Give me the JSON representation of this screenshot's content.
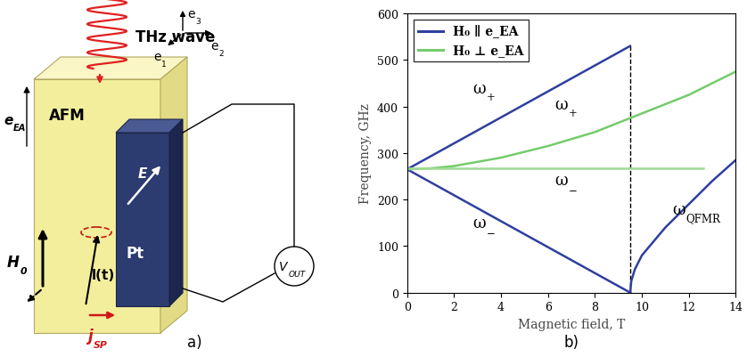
{
  "diagram": {
    "caption": "a)",
    "wave_label": "THz wave",
    "basis": [
      {
        "base": "e",
        "sub": "1"
      },
      {
        "base": "e",
        "sub": "2"
      },
      {
        "base": "e",
        "sub": "3"
      }
    ],
    "afm": "AFM",
    "easy_axis": {
      "base": "e",
      "sub": "EA"
    },
    "field": {
      "base": "H",
      "sub": "0"
    },
    "order_parameter": "l(t)",
    "pt": "Pt",
    "electric_field": "E",
    "voltage": {
      "base": "V",
      "sub": "OUT"
    },
    "spin_current": {
      "base": "j",
      "sub": "SP"
    }
  },
  "chart_data": {
    "type": "line",
    "caption": "b)",
    "xlabel": "Magnetic field, T",
    "ylabel": "Frequency, GHz",
    "xlim": [
      0,
      14
    ],
    "ylim": [
      0,
      600
    ],
    "xticks": [
      0,
      2,
      4,
      6,
      8,
      10,
      12,
      14
    ],
    "yticks": [
      0,
      100,
      200,
      300,
      400,
      500,
      600
    ],
    "legend": "upper left",
    "series": [
      {
        "name": "H₀ ∥ e_EA",
        "color": "#2f3f9f",
        "curves": [
          {
            "label": {
              "base": "ω",
              "sub": "+"
            },
            "x": [
              0,
              9.5
            ],
            "values": [
              265,
              530
            ]
          },
          {
            "label": {
              "base": "ω",
              "sub": "−"
            },
            "x": [
              0,
              9.5
            ],
            "values": [
              265,
              0
            ]
          },
          {
            "x": [
              9.5,
              9.5
            ],
            "values": [
              0,
              530
            ],
            "line_style": "dashed",
            "color": "#000000"
          },
          {
            "label": {
              "base": "ω",
              "sub": "QFMR"
            },
            "x": [
              9.5,
              9.55,
              9.7,
              10,
              10.5,
              11,
              12,
              13,
              14
            ],
            "values": [
              0,
              25,
              50,
              80,
              110,
              140,
              190,
              240,
              285
            ]
          }
        ]
      },
      {
        "name": "H₀ ⊥ e_EA",
        "color": "#74cc6c",
        "curves": [
          {
            "label": {
              "base": "ω",
              "sub": "+"
            },
            "x": [
              0,
              1,
              2,
              4,
              6,
              8,
              9.5,
              10,
              12,
              14
            ],
            "values": [
              265,
              267,
              272,
              290,
              315,
              345,
              375,
              385,
              425,
              475
            ]
          },
          {
            "label": {
              "base": "ω",
              "sub": "−"
            },
            "x": [
              0,
              12.6
            ],
            "values": [
              268,
              268
            ],
            "color": "#9fdc94"
          }
        ]
      }
    ]
  }
}
